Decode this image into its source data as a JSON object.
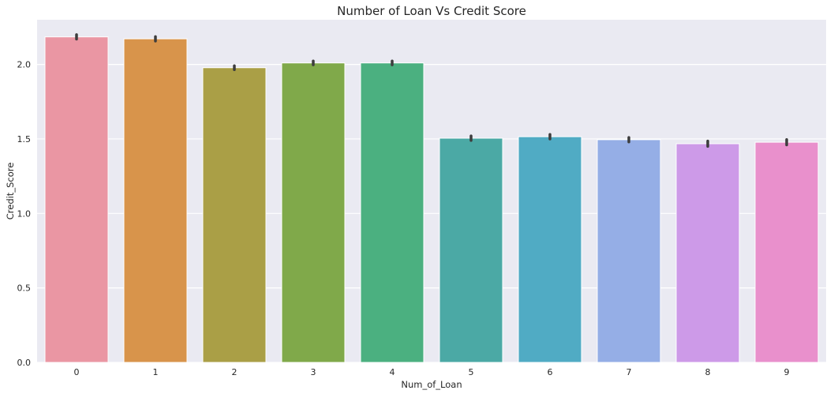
{
  "chart_data": {
    "type": "bar",
    "title": "Number of Loan Vs Credit Score",
    "xlabel": "Num_of_Loan",
    "ylabel": "Credit_Score",
    "categories": [
      "0",
      "1",
      "2",
      "3",
      "4",
      "5",
      "6",
      "7",
      "8",
      "9"
    ],
    "values": [
      2.185,
      2.172,
      1.978,
      2.01,
      2.01,
      1.505,
      1.515,
      1.495,
      1.468,
      1.478
    ],
    "error": [
      0.015,
      0.015,
      0.013,
      0.013,
      0.013,
      0.015,
      0.015,
      0.015,
      0.018,
      0.018
    ],
    "ylim": [
      0,
      2.3
    ],
    "yticks": [
      0.0,
      0.5,
      1.0,
      1.5,
      2.0
    ],
    "ytick_labels": [
      "0.0",
      "0.5",
      "1.0",
      "1.5",
      "2.0"
    ],
    "grid": true,
    "background": "#eaeaf2",
    "colors": [
      "#ea96a3",
      "#d8944b",
      "#aa9f46",
      "#80a94a",
      "#4bb080",
      "#4ba9a5",
      "#50abc4",
      "#95aee6",
      "#cd9ae8",
      "#e990cc"
    ]
  }
}
